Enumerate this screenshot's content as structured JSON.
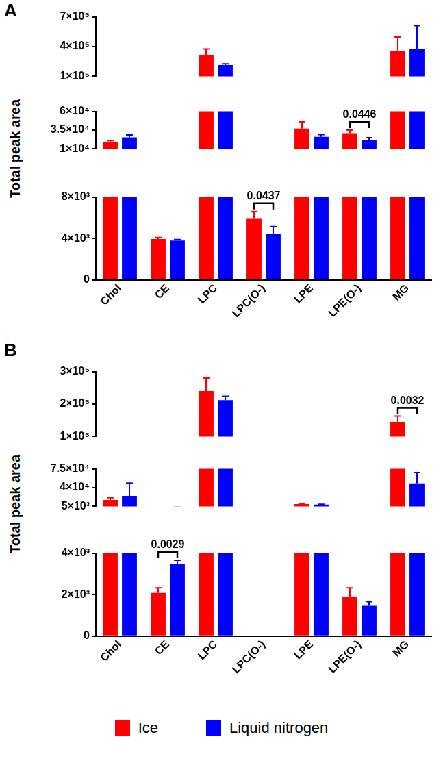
{
  "chart_data": [
    {
      "panel": "A",
      "type": "bar",
      "y_label": "Total peak area",
      "grid": false,
      "categories": [
        "Chol",
        "CE",
        "LPC",
        "LPC(O-)",
        "LPE",
        "LPE(O-)",
        "MG"
      ],
      "series": [
        {
          "name": "Ice",
          "color": "#ff0000",
          "values": [
            19000,
            3950,
            316000,
            5900,
            37000,
            31000,
            352000
          ],
          "errors": [
            2000,
            150,
            60000,
            700,
            9000,
            4000,
            144000
          ]
        },
        {
          "name": "Liquid nitrogen",
          "color": "#0000ff",
          "values": [
            25500,
            3800,
            214000,
            4450,
            26000,
            22000,
            376000
          ],
          "errors": [
            3000,
            100,
            12000,
            700,
            3000,
            3000,
            234000
          ]
        }
      ],
      "segments": [
        {
          "ylim": [
            0,
            8000
          ],
          "yticks": [
            0,
            {
              "value": 4000,
              "label": "4×10³"
            },
            {
              "value": 8000,
              "label": "8×10³"
            }
          ]
        },
        {
          "ylim": [
            10000,
            60000
          ],
          "yticks": [
            {
              "value": 10000,
              "label": "1×10⁴"
            },
            {
              "value": 35000,
              "label": "3.5×10⁴"
            },
            {
              "value": 60000,
              "label": "6×10⁴"
            }
          ]
        },
        {
          "ylim": [
            100000,
            700000
          ],
          "yticks": [
            {
              "value": 100000,
              "label": "1×10⁵"
            },
            {
              "value": 400000,
              "label": "4×10⁵"
            },
            {
              "value": 700000,
              "label": "7×10⁵"
            }
          ]
        }
      ],
      "annotations": [
        {
          "category": "LPC(O-)",
          "text": "0.0437"
        },
        {
          "category": "LPE(O-)",
          "text": "0.0446"
        }
      ]
    },
    {
      "panel": "B",
      "type": "bar",
      "y_label": "Total peak area",
      "grid": false,
      "legend": "bottom",
      "categories": [
        "Chol",
        "CE",
        "LPC",
        "LPC(O-)",
        "LPE",
        "LPE(O-)",
        "MG"
      ],
      "series": [
        {
          "name": "Ice",
          "color": "#ff0000",
          "values": [
            17000,
            2080,
            240000,
            null,
            9400,
            1880,
            145000
          ],
          "errors": [
            4000,
            250,
            40000,
            null,
            1000,
            450,
            18000
          ]
        },
        {
          "name": "Liquid nitrogen",
          "color": "#0000ff",
          "values": [
            24700,
            3460,
            212000,
            null,
            8300,
            1460,
            48000
          ],
          "errors": [
            24000,
            200,
            12000,
            null,
            700,
            200,
            20000
          ]
        }
      ],
      "segments": [
        {
          "ylim": [
            0,
            4000
          ],
          "yticks": [
            0,
            {
              "value": 2000,
              "label": "2×10³"
            },
            {
              "value": 4000,
              "label": "4×10³"
            }
          ]
        },
        {
          "ylim": [
            5000,
            75000
          ],
          "yticks": [
            {
              "value": 5000,
              "label": "5×10³"
            },
            {
              "value": 40000,
              "label": "4×10⁴"
            },
            {
              "value": 75000,
              "label": "7.5×10⁴"
            }
          ]
        },
        {
          "ylim": [
            100000,
            300000
          ],
          "yticks": [
            {
              "value": 100000,
              "label": "1×10⁵"
            },
            {
              "value": 200000,
              "label": "2×10⁵"
            },
            {
              "value": 300000,
              "label": "3×10⁵"
            }
          ]
        }
      ],
      "annotations": [
        {
          "category": "CE",
          "text": "0.0029"
        },
        {
          "category": "MG",
          "text": "0.0032"
        }
      ]
    }
  ]
}
